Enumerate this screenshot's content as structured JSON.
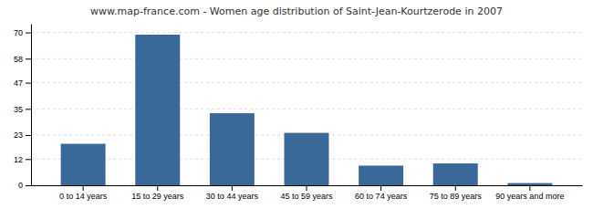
{
  "chart_data": {
    "type": "bar",
    "title": "www.map-france.com - Women age distribution of Saint-Jean-Kourtzerode in 2007",
    "categories": [
      "0 to 14 years",
      "15 to 29 years",
      "30 to 44 years",
      "45 to 59 years",
      "60 to 74 years",
      "75 to 89 years",
      "90 years and more"
    ],
    "values": [
      19,
      69,
      33,
      24,
      9,
      10,
      1
    ],
    "color": "#3a6898",
    "ylim": [
      0,
      74
    ],
    "yticks": [
      0,
      12,
      23,
      35,
      47,
      58,
      70
    ],
    "grid": true
  }
}
